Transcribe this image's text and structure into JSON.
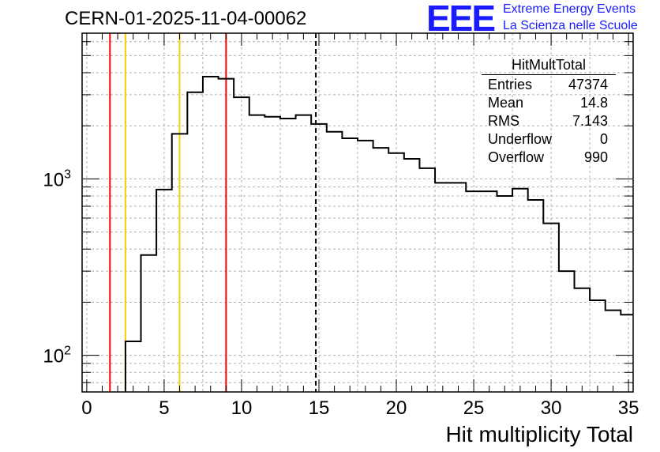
{
  "header": {
    "run_title": "CERN-01-2025-11-04-00062",
    "logo_text": "EEE",
    "logo_line1": "Extreme Energy Events",
    "logo_line2": "La Scienza nelle Scuole"
  },
  "stats": {
    "title": "HitMultTotal",
    "rows": [
      {
        "label": "Entries",
        "value": "47374"
      },
      {
        "label": "Mean",
        "value": "14.8"
      },
      {
        "label": "RMS",
        "value": "7.143"
      },
      {
        "label": "Underflow",
        "value": "0"
      },
      {
        "label": "Overflow",
        "value": "990"
      }
    ]
  },
  "chart_data": {
    "type": "histogram",
    "title": "CERN-01-2025-11-04-00062",
    "xlabel": "Hit multiplicity Total",
    "ylabel": "",
    "yscale": "log",
    "xlim": [
      -0.3,
      35.3
    ],
    "ylim": [
      62,
      6700
    ],
    "bin_edges": [
      2.5,
      3.5,
      4.5,
      5.5,
      6.5,
      7.5,
      8.5,
      9.5,
      10.5,
      11.5,
      12.5,
      13.5,
      14.5,
      15.5,
      16.5,
      17.5,
      18.5,
      19.5,
      20.5,
      21.5,
      22.5,
      23.5,
      24.5,
      25.5,
      26.5,
      27.5,
      28.5,
      29.5,
      30.5,
      31.5,
      32.5,
      33.5,
      34.5,
      35.3
    ],
    "counts": [
      120,
      370,
      870,
      1800,
      3100,
      3800,
      3700,
      2900,
      2300,
      2250,
      2200,
      2300,
      2050,
      1850,
      1700,
      1650,
      1500,
      1400,
      1300,
      1150,
      950,
      950,
      850,
      850,
      800,
      880,
      760,
      560,
      300,
      240,
      205,
      180,
      170
    ],
    "x_ticks": [
      0,
      5,
      10,
      15,
      20,
      25,
      30,
      35
    ],
    "y_ticks": [
      {
        "value": 100,
        "label": "10^2"
      },
      {
        "value": 1000,
        "label": "10^3"
      }
    ],
    "grid": true,
    "vertical_lines": [
      {
        "x": 1.5,
        "color": "#ff0000",
        "style": "solid"
      },
      {
        "x": 2.5,
        "color": "#ffcc00",
        "style": "solid"
      },
      {
        "x": 6.0,
        "color": "#ffcc00",
        "style": "solid"
      },
      {
        "x": 9.0,
        "color": "#ff0000",
        "style": "solid"
      },
      {
        "x": 14.8,
        "color": "#000000",
        "style": "dashed"
      }
    ],
    "line_color": "#000000"
  }
}
